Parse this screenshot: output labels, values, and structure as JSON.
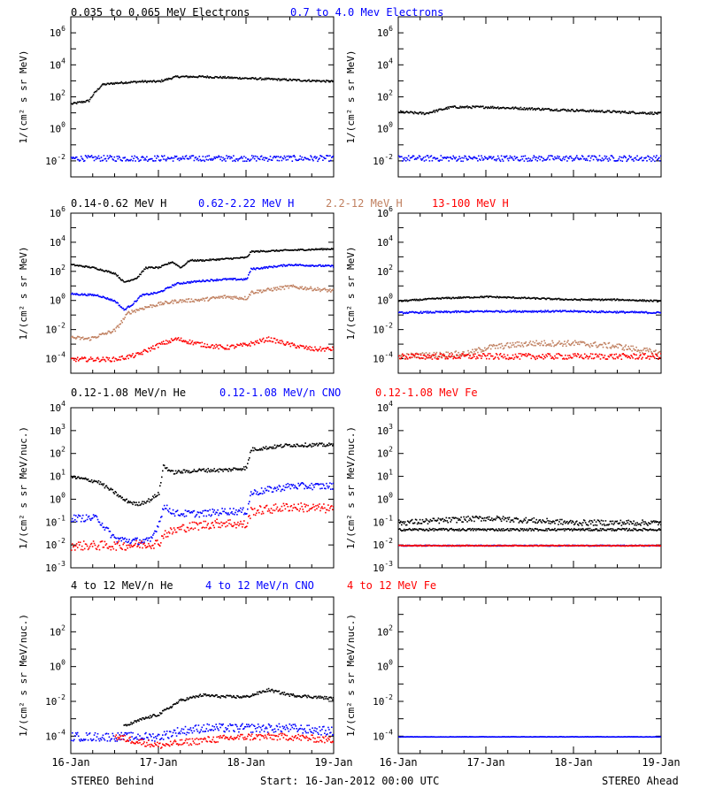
{
  "colors": {
    "black": "#000000",
    "blue": "#0000ff",
    "tan": "#c08060",
    "red": "#ff0000"
  },
  "footer": {
    "left": "STEREO Behind",
    "center": "Start: 16-Jan-2012 00:00 UTC",
    "right": "STEREO Ahead"
  },
  "chart_data": [
    {
      "type": "scatter",
      "title_segments": [
        {
          "text": "0.035 to 0.065 MeV Electrons",
          "color": "black"
        },
        {
          "text": "0.7 to 4.0 Mev Electrons",
          "color": "blue"
        }
      ],
      "ylabel": "1/(cm² s sr MeV)",
      "yscale": "log",
      "xticks": [
        "16-Jan",
        "17-Jan",
        "18-Jan",
        "19-Jan"
      ],
      "panels": [
        {
          "name": "STEREO Behind",
          "ylim_exp": [
            -3,
            7
          ],
          "yticks": [
            {
              "base": "10",
              "exp": "-2"
            },
            {
              "base": "10",
              "exp": "0"
            },
            {
              "base": "10",
              "exp": "2"
            },
            {
              "base": "10",
              "exp": "4"
            },
            {
              "base": "10",
              "exp": "6"
            }
          ],
          "series": [
            {
              "color": "black",
              "x": [
                0,
                0.2,
                0.25,
                0.35,
                0.5,
                0.8,
                1.0,
                1.2,
                1.3,
                1.5,
                2.0,
                2.5,
                3.0
              ],
              "y_exp": [
                1.6,
                1.8,
                2.2,
                2.8,
                2.9,
                3.0,
                3.0,
                3.3,
                3.3,
                3.3,
                3.2,
                3.1,
                3.0
              ],
              "noise": 0.06
            },
            {
              "color": "blue",
              "x": [
                0,
                3.0
              ],
              "y_exp": [
                -1.8,
                -1.8
              ],
              "noise": 0.18
            }
          ]
        },
        {
          "name": "STEREO Ahead",
          "ylim_exp": [
            -3,
            7
          ],
          "yticks": [
            {
              "base": "10",
              "exp": "-2"
            },
            {
              "base": "10",
              "exp": "0"
            },
            {
              "base": "10",
              "exp": "2"
            },
            {
              "base": "10",
              "exp": "4"
            },
            {
              "base": "10",
              "exp": "6"
            }
          ],
          "series": [
            {
              "color": "black",
              "x": [
                0,
                0.3,
                0.6,
                1.0,
                1.5,
                2.0,
                2.5,
                3.0
              ],
              "y_exp": [
                1.1,
                1.0,
                1.4,
                1.4,
                1.3,
                1.2,
                1.1,
                1.0
              ],
              "noise": 0.07
            },
            {
              "color": "blue",
              "x": [
                0,
                3.0
              ],
              "y_exp": [
                -1.8,
                -1.8
              ],
              "noise": 0.18
            }
          ]
        }
      ]
    },
    {
      "type": "scatter",
      "title_segments": [
        {
          "text": "0.14-0.62 MeV H",
          "color": "black"
        },
        {
          "text": "0.62-2.22 MeV H",
          "color": "blue"
        },
        {
          "text": "2.2-12 MeV H",
          "color": "tan"
        },
        {
          "text": "13-100 MeV H",
          "color": "red"
        }
      ],
      "ylabel": "1/(cm² s sr MeV)",
      "yscale": "log",
      "xticks": [
        "16-Jan",
        "17-Jan",
        "18-Jan",
        "19-Jan"
      ],
      "panels": [
        {
          "name": "STEREO Behind",
          "ylim_exp": [
            -5,
            6
          ],
          "yticks": [
            {
              "base": "10",
              "exp": "-4"
            },
            {
              "base": "10",
              "exp": "-2"
            },
            {
              "base": "10",
              "exp": "0"
            },
            {
              "base": "10",
              "exp": "2"
            },
            {
              "base": "10",
              "exp": "4"
            },
            {
              "base": "10",
              "exp": "6"
            }
          ],
          "series": [
            {
              "color": "black",
              "x": [
                0,
                0.25,
                0.5,
                0.6,
                0.75,
                0.85,
                1.0,
                1.15,
                1.25,
                1.35,
                1.5,
                1.75,
                2.0,
                2.05,
                2.5,
                3.0
              ],
              "y_exp": [
                2.5,
                2.3,
                1.9,
                1.3,
                1.6,
                2.3,
                2.3,
                2.7,
                2.3,
                2.8,
                2.8,
                2.9,
                3.0,
                3.4,
                3.5,
                3.6
              ],
              "noise": 0.05
            },
            {
              "color": "blue",
              "x": [
                0,
                0.3,
                0.5,
                0.6,
                0.7,
                0.8,
                1.0,
                1.2,
                1.5,
                1.75,
                2.0,
                2.05,
                2.5,
                3.0
              ],
              "y_exp": [
                0.5,
                0.4,
                0.0,
                -0.6,
                -0.2,
                0.4,
                0.6,
                1.2,
                1.4,
                1.5,
                1.5,
                2.2,
                2.5,
                2.4
              ],
              "noise": 0.06
            },
            {
              "color": "tan",
              "x": [
                0,
                0.2,
                0.35,
                0.5,
                0.6,
                0.65,
                0.8,
                1.0,
                1.2,
                1.5,
                1.75,
                2.0,
                2.05,
                2.5,
                3.0
              ],
              "y_exp": [
                -2.5,
                -2.6,
                -2.3,
                -2.0,
                -1.2,
                -0.8,
                -0.5,
                -0.2,
                0.0,
                0.1,
                0.3,
                0.2,
                0.6,
                1.0,
                0.7
              ],
              "noise": 0.12
            },
            {
              "color": "red",
              "x": [
                0,
                0.5,
                0.75,
                1.0,
                1.2,
                1.5,
                1.75,
                2.0,
                2.25,
                2.5,
                2.75,
                3.0
              ],
              "y_exp": [
                -4.0,
                -4.0,
                -3.7,
                -3.0,
                -2.6,
                -3.0,
                -3.2,
                -3.0,
                -2.6,
                -3.0,
                -3.3,
                -3.3
              ],
              "noise": 0.15
            }
          ]
        },
        {
          "name": "STEREO Ahead",
          "ylim_exp": [
            -5,
            6
          ],
          "yticks": [
            {
              "base": "10",
              "exp": "-4"
            },
            {
              "base": "10",
              "exp": "-2"
            },
            {
              "base": "10",
              "exp": "0"
            },
            {
              "base": "10",
              "exp": "2"
            },
            {
              "base": "10",
              "exp": "4"
            },
            {
              "base": "10",
              "exp": "6"
            }
          ],
          "series": [
            {
              "color": "black",
              "x": [
                0,
                0.5,
                1.0,
                1.5,
                2.0,
                2.5,
                3.0
              ],
              "y_exp": [
                0.0,
                0.2,
                0.3,
                0.2,
                0.1,
                0.1,
                0.0
              ],
              "noise": 0.05
            },
            {
              "color": "blue",
              "x": [
                0,
                1.0,
                2.0,
                3.0
              ],
              "y_exp": [
                -0.8,
                -0.7,
                -0.7,
                -0.8
              ],
              "noise": 0.06
            },
            {
              "color": "tan",
              "x": [
                0,
                0.8,
                1.0,
                1.5,
                2.0,
                2.5,
                3.0
              ],
              "y_exp": [
                -3.8,
                -3.6,
                -3.2,
                -2.9,
                -2.9,
                -3.1,
                -3.6
              ],
              "noise": 0.2
            },
            {
              "color": "red",
              "x": [
                0,
                3.0
              ],
              "y_exp": [
                -3.8,
                -3.8
              ],
              "noise": 0.2
            }
          ]
        }
      ]
    },
    {
      "type": "scatter",
      "title_segments": [
        {
          "text": "0.12-1.08 MeV/n He",
          "color": "black"
        },
        {
          "text": "0.12-1.08 MeV/n CNO",
          "color": "blue"
        },
        {
          "text": "0.12-1.08 MeV Fe",
          "color": "red"
        }
      ],
      "ylabel": "1/(cm² s sr MeV/nuc.)",
      "yscale": "log",
      "xticks": [
        "16-Jan",
        "17-Jan",
        "18-Jan",
        "19-Jan"
      ],
      "panels": [
        {
          "name": "STEREO Behind",
          "ylim_exp": [
            -3,
            4
          ],
          "yticks": [
            {
              "base": "10",
              "exp": "-3"
            },
            {
              "base": "10",
              "exp": "-2"
            },
            {
              "base": "10",
              "exp": "-1"
            },
            {
              "base": "10",
              "exp": "0"
            },
            {
              "base": "10",
              "exp": "1"
            },
            {
              "base": "10",
              "exp": "2"
            },
            {
              "base": "10",
              "exp": "3"
            },
            {
              "base": "10",
              "exp": "4"
            }
          ],
          "series": [
            {
              "color": "black",
              "x": [
                0,
                0.3,
                0.5,
                0.6,
                0.75,
                0.9,
                1.0,
                1.05,
                1.15,
                1.5,
                1.75,
                2.0,
                2.05,
                2.5,
                3.0
              ],
              "y_exp": [
                1.0,
                0.8,
                0.3,
                0.0,
                -0.2,
                0.0,
                0.3,
                1.5,
                1.2,
                1.3,
                1.3,
                1.4,
                2.2,
                2.4,
                2.4
              ],
              "noise": 0.08
            },
            {
              "color": "blue",
              "x": [
                0,
                0.3,
                0.4,
                0.5,
                0.7,
                0.9,
                1.0,
                1.05,
                1.2,
                1.5,
                1.75,
                2.0,
                2.05,
                2.5,
                3.0
              ],
              "y_exp": [
                -0.8,
                -0.8,
                -1.3,
                -1.7,
                -1.8,
                -1.8,
                -1.0,
                -0.3,
                -0.6,
                -0.6,
                -0.5,
                -0.5,
                0.3,
                0.6,
                0.6
              ],
              "noise": 0.15
            },
            {
              "color": "red",
              "x": [
                0,
                0.4,
                0.6,
                1.0,
                1.05,
                1.3,
                1.5,
                1.75,
                2.0,
                2.05,
                2.5,
                3.0
              ],
              "y_exp": [
                -2.0,
                -2.0,
                -2.0,
                -1.9,
                -1.5,
                -1.2,
                -1.1,
                -1.0,
                -1.1,
                -0.5,
                -0.3,
                -0.4
              ],
              "noise": 0.2
            }
          ]
        },
        {
          "name": "STEREO Ahead",
          "ylim_exp": [
            -3,
            4
          ],
          "yticks": [
            {
              "base": "10",
              "exp": "-3"
            },
            {
              "base": "10",
              "exp": "-2"
            },
            {
              "base": "10",
              "exp": "-1"
            },
            {
              "base": "10",
              "exp": "0"
            },
            {
              "base": "10",
              "exp": "1"
            },
            {
              "base": "10",
              "exp": "2"
            },
            {
              "base": "10",
              "exp": "3"
            },
            {
              "base": "10",
              "exp": "4"
            }
          ],
          "series": [
            {
              "color": "black",
              "x": [
                0,
                3.0
              ],
              "y_exp": [
                -1.3,
                -1.3
              ],
              "noise": 0.05
            },
            {
              "color": "black",
              "x": [
                0,
                0.5,
                1.0,
                1.5,
                2.0,
                3.0
              ],
              "y_exp": [
                -1.0,
                -0.9,
                -0.8,
                -0.9,
                -1.0,
                -1.0
              ],
              "noise": 0.12
            },
            {
              "color": "blue",
              "x": [
                0,
                3.0
              ],
              "y_exp": [
                -2.0,
                -2.0
              ],
              "noise": 0.02
            },
            {
              "color": "red",
              "x": [
                0,
                3.0
              ],
              "y_exp": [
                -2.0,
                -2.0
              ],
              "noise": 0.02
            }
          ]
        }
      ]
    },
    {
      "type": "scatter",
      "title_segments": [
        {
          "text": "4 to 12 MeV/n He",
          "color": "black"
        },
        {
          "text": "4 to 12 MeV/n CNO",
          "color": "blue"
        },
        {
          "text": "4 to 12 MeV Fe",
          "color": "red"
        }
      ],
      "ylabel": "1/(cm² s sr MeV/nuc.)",
      "yscale": "log",
      "xticks": [
        "16-Jan",
        "17-Jan",
        "18-Jan",
        "19-Jan"
      ],
      "panels": [
        {
          "name": "STEREO Behind",
          "ylim_exp": [
            -5,
            4
          ],
          "yticks": [
            {
              "base": "10",
              "exp": "-4"
            },
            {
              "base": "10",
              "exp": "-2"
            },
            {
              "base": "10",
              "exp": "0"
            },
            {
              "base": "10",
              "exp": "2"
            }
          ],
          "series": [
            {
              "color": "black",
              "x": [
                0.6,
                0.8,
                1.0,
                1.25,
                1.5,
                1.75,
                2.0,
                2.25,
                2.5,
                3.0
              ],
              "y_exp": [
                -3.4,
                -3.0,
                -2.7,
                -1.9,
                -1.6,
                -1.7,
                -1.7,
                -1.3,
                -1.6,
                -1.8
              ],
              "noise": 0.08
            },
            {
              "color": "blue",
              "x": [
                0,
                0.5,
                0.6,
                1.0,
                1.2,
                1.5,
                2.0,
                2.5,
                3.0
              ],
              "y_exp": [
                -4.0,
                -4.0,
                -4.0,
                -4.0,
                -3.7,
                -3.5,
                -3.5,
                -3.5,
                -3.7
              ],
              "noise": 0.25
            },
            {
              "color": "red",
              "x": [
                0.5,
                1.0,
                1.5,
                2.0,
                2.5,
                3.0
              ],
              "y_exp": [
                -4.0,
                -4.5,
                -4.2,
                -4.0,
                -4.0,
                -4.2
              ],
              "noise": 0.2
            }
          ]
        },
        {
          "name": "STEREO Ahead",
          "ylim_exp": [
            -5,
            4
          ],
          "yticks": [
            {
              "base": "10",
              "exp": "-4"
            },
            {
              "base": "10",
              "exp": "-2"
            },
            {
              "base": "10",
              "exp": "0"
            },
            {
              "base": "10",
              "exp": "2"
            }
          ],
          "series": [
            {
              "color": "blue",
              "x": [
                0,
                3.0
              ],
              "y_exp": [
                -4.0,
                -4.0
              ],
              "noise": 0.01
            }
          ]
        }
      ]
    }
  ]
}
